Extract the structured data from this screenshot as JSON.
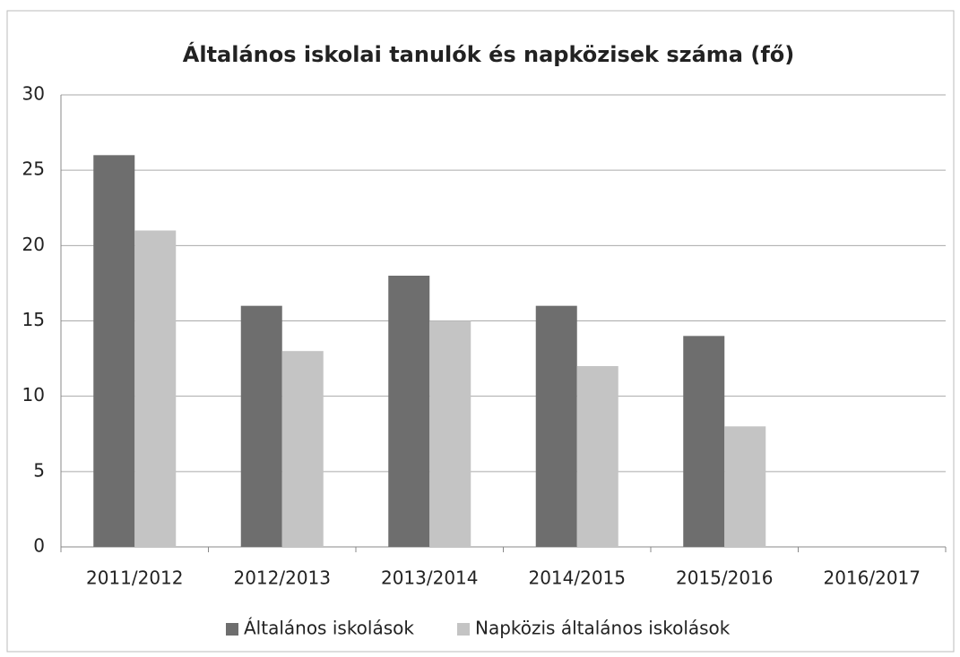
{
  "chart_data": {
    "type": "bar",
    "title": "Általános iskolai tanulók és napközisek száma (fő)",
    "categories": [
      "2011/2012",
      "2012/2013",
      "2013/2014",
      "2014/2015",
      "2015/2016",
      "2016/2017"
    ],
    "series": [
      {
        "name": "Általános iskolások",
        "color": "#6e6e6e",
        "values": [
          26,
          16,
          18,
          16,
          14,
          null
        ]
      },
      {
        "name": "Napközis általános iskolások",
        "color": "#c4c4c4",
        "values": [
          21,
          13,
          15,
          12,
          8,
          null
        ]
      }
    ],
    "ylim": [
      0,
      30
    ],
    "yticks": [
      0,
      5,
      10,
      15,
      20,
      25,
      30
    ],
    "grid": true,
    "legend": "bottom"
  }
}
